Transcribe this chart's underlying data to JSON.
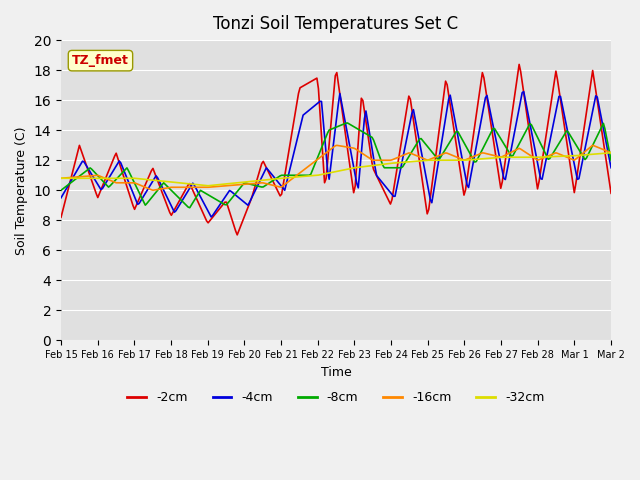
{
  "title": "Tonzi Soil Temperatures Set C",
  "xlabel": "Time",
  "ylabel": "Soil Temperature (C)",
  "ylim": [
    0,
    20
  ],
  "yticks": [
    0,
    2,
    4,
    6,
    8,
    10,
    12,
    14,
    16,
    18,
    20
  ],
  "bg_color": "#e0e0e0",
  "fig_color": "#f0f0f0",
  "annotation_label": "TZ_fmet",
  "annotation_color": "#cc0000",
  "annotation_bg": "#ffffcc",
  "legend_entries": [
    "-2cm",
    "-4cm",
    "-8cm",
    "-16cm",
    "-32cm"
  ],
  "line_colors": [
    "#dd0000",
    "#0000dd",
    "#00aa00",
    "#ff8800",
    "#dddd00"
  ],
  "x_tick_labels": [
    "Feb 15",
    "Feb 16",
    "Feb 17",
    "Feb 18",
    "Feb 19",
    "Feb 20",
    "Feb 21",
    "Feb 22",
    "Feb 23",
    "Feb 24",
    "Feb 25",
    "Feb 26",
    "Feb 27",
    "Feb 28",
    "Mar 1",
    "Mar 2"
  ],
  "n_days": 15,
  "pts_per_day": 24
}
